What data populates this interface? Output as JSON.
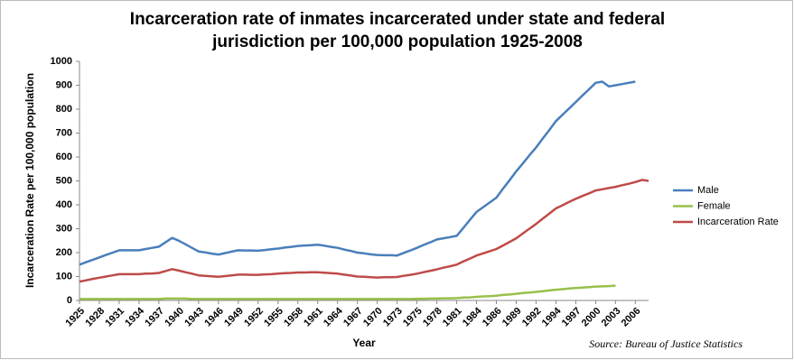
{
  "chart_data": {
    "type": "line",
    "title": "Incarceration rate of inmates incarcerated under state and federal jurisdiction per 100,000 population 1925-2008",
    "x_label": "Year",
    "y_label": "Incarceration Rate per 100,000 population",
    "source": "Source: Bureau of Justice Statistics",
    "categories": [
      "1925",
      null,
      null,
      "1928",
      null,
      null,
      "1931",
      null,
      null,
      "1934",
      null,
      null,
      "1937",
      null,
      null,
      "1940",
      null,
      null,
      "1943",
      null,
      null,
      "1946",
      null,
      null,
      "1949",
      null,
      null,
      "1952",
      null,
      null,
      "1955",
      null,
      null,
      "1958",
      null,
      null,
      "1961",
      null,
      null,
      "1964",
      null,
      null,
      "1967",
      null,
      null,
      "1970",
      null,
      null,
      "1973",
      null,
      null,
      "1975",
      null,
      null,
      "1978",
      null,
      null,
      "1981",
      null,
      null,
      "1984",
      null,
      null,
      "1986",
      null,
      null,
      "1989",
      null,
      null,
      "1992",
      null,
      null,
      "1994",
      null,
      null,
      "1997",
      null,
      null,
      "2000",
      null,
      null,
      "2003",
      null,
      null,
      "2006",
      null,
      null
    ],
    "series": [
      {
        "name": "Male",
        "color": "#4a7ebb",
        "values": [
          150,
          160,
          170,
          180,
          190,
          200,
          210,
          210,
          210,
          210,
          215,
          220,
          225,
          243,
          262,
          250,
          235,
          220,
          205,
          201,
          196,
          192,
          198,
          204,
          210,
          209,
          209,
          208,
          211,
          214,
          217,
          221,
          224,
          228,
          230,
          231,
          233,
          229,
          224,
          220,
          213,
          207,
          200,
          197,
          193,
          190,
          189,
          189,
          188,
          199,
          209,
          220,
          232,
          243,
          255,
          260,
          265,
          270,
          303,
          337,
          370,
          390,
          410,
          430,
          467,
          503,
          540,
          573,
          607,
          640,
          677,
          713,
          750,
          777,
          803,
          830,
          857,
          883,
          910,
          915,
          895,
          900,
          905,
          910,
          915,
          null,
          null
        ]
      },
      {
        "name": "Female",
        "color": "#98c04c",
        "values": [
          6,
          6,
          6,
          6,
          6,
          6,
          6,
          6,
          6,
          6,
          6,
          6,
          6,
          8,
          8,
          8,
          8,
          6,
          6,
          6,
          6,
          6,
          6,
          6,
          6,
          6,
          6,
          6,
          6,
          6,
          6,
          6,
          6,
          6,
          6,
          6,
          6,
          6,
          6,
          6,
          6,
          6,
          6,
          6,
          6,
          6,
          6,
          6,
          6,
          6,
          6,
          7,
          7,
          8,
          8,
          9,
          9,
          10,
          12,
          13,
          15,
          17,
          18,
          20,
          23,
          25,
          28,
          31,
          33,
          36,
          39,
          42,
          45,
          47,
          50,
          52,
          54,
          56,
          58,
          59,
          60,
          62,
          null,
          null,
          null,
          null,
          null
        ]
      },
      {
        "name": "Incarceration Rate",
        "color": "#be4b48",
        "values": [
          79,
          84,
          90,
          95,
          100,
          105,
          110,
          110,
          110,
          110,
          112,
          113,
          115,
          123,
          131,
          125,
          118,
          112,
          105,
          103,
          101,
          99,
          102,
          105,
          108,
          108,
          107,
          107,
          109,
          110,
          112,
          114,
          115,
          117,
          117,
          118,
          118,
          116,
          114,
          112,
          108,
          104,
          100,
          99,
          97,
          96,
          97,
          97,
          98,
          103,
          107,
          112,
          118,
          124,
          130,
          137,
          143,
          150,
          163,
          175,
          188,
          197,
          206,
          215,
          230,
          245,
          260,
          280,
          300,
          320,
          342,
          363,
          385,
          398,
          412,
          425,
          437,
          448,
          460,
          465,
          470,
          475,
          482,
          488,
          495,
          504,
          500
        ]
      }
    ],
    "ylim": [
      0,
      1000
    ],
    "yticks": [
      0,
      100,
      200,
      300,
      400,
      500,
      600,
      700,
      800,
      900,
      1000
    ],
    "grid": false,
    "legend": "right"
  }
}
